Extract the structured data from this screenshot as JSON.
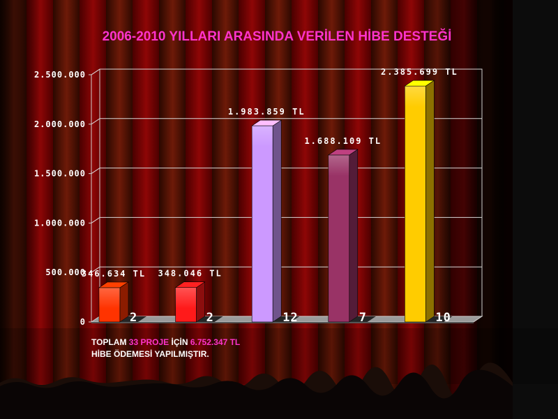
{
  "slide": {
    "title": "2006-2010 YILLARI ARASINDA VERİLEN HİBE DESTEĞİ",
    "colors": {
      "title": "#ff33cc",
      "highlight": "#ff33cc",
      "curtain_dark": "#3a0a00",
      "curtain_light": "#6b1508",
      "curtain_red": "#8a0000"
    }
  },
  "note": {
    "line1_prefix": "TOPLAM",
    "line1_count": "33 PROJE",
    "line1_mid": "İÇİN",
    "line1_total": "6.752.347 TL",
    "line2": "HİBE ÖDEMESİ YAPILMIŞTIR."
  },
  "chart_data": {
    "type": "bar",
    "title": "2006-2010 YILLARI ARASINDA VERİLEN HİBE DESTEĞİ",
    "xlabel": "",
    "ylabel": "",
    "ylim": [
      0,
      2500000
    ],
    "yticks": [
      0,
      500000,
      1000000,
      1500000,
      2000000,
      2500000
    ],
    "ytick_labels": [
      "0",
      "500.000",
      "1.000.000",
      "1.500.000",
      "2.000.000",
      "2.500.000"
    ],
    "grid": true,
    "legend": "none",
    "values": [
      346634,
      348046,
      1983859,
      1688109,
      2385699
    ],
    "value_labels": [
      "346.634 TL",
      "348.046 TL",
      "1.983.859 TL",
      "1.688.109 TL",
      "2.385.699 TL"
    ],
    "project_counts": [
      "2",
      "2",
      "12",
      "7",
      "10"
    ],
    "colors": [
      "#ff3300",
      "#ff1a1a",
      "#cc99ff",
      "#993366",
      "#ffcc00"
    ]
  }
}
